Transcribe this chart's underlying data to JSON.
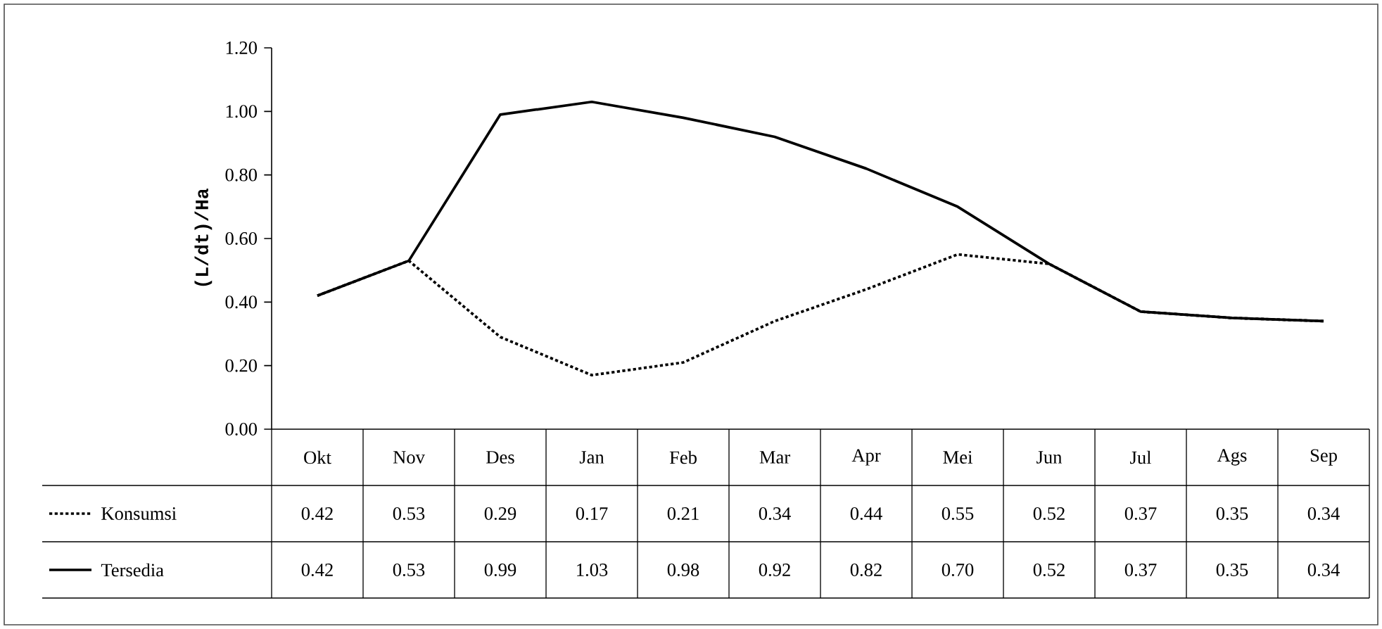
{
  "chart_data": {
    "type": "line",
    "ylabel": "(L/dt)/Ha",
    "categories": [
      "Okt",
      "Nov",
      "Des",
      "Jan",
      "Feb",
      "Mar",
      "Apr",
      "Mei",
      "Jun",
      "Jul",
      "Ags",
      "Sep"
    ],
    "series": [
      {
        "name": "Konsumsi",
        "color": "#000000",
        "line_style": "dotted",
        "values": [
          0.42,
          0.53,
          0.29,
          0.17,
          0.21,
          0.34,
          0.44,
          0.55,
          0.52,
          0.37,
          0.35,
          0.34
        ],
        "value_labels": [
          "0.42",
          "0.53",
          "0.29",
          "0.17",
          "0.21",
          "0.34",
          "0.44",
          "0.55",
          "0.52",
          "0.37",
          "0.35",
          "0.34"
        ]
      },
      {
        "name": "Tersedia",
        "color": "#000000",
        "line_style": "solid",
        "values": [
          0.42,
          0.53,
          0.99,
          1.03,
          0.98,
          0.92,
          0.82,
          0.7,
          0.52,
          0.37,
          0.35,
          0.34
        ],
        "value_labels": [
          "0.42",
          "0.53",
          "0.99",
          "1.03",
          "0.98",
          "0.92",
          "0.82",
          "0.70",
          "0.52",
          "0.37",
          "0.35",
          "0.34"
        ]
      }
    ],
    "ylim": [
      0,
      1.2
    ],
    "yticks": [
      {
        "value": 0,
        "label": "0.00"
      },
      {
        "value": 0.2,
        "label": "0.20"
      },
      {
        "value": 0.4,
        "label": "0.40"
      },
      {
        "value": 0.6,
        "label": "0.60"
      },
      {
        "value": 0.8,
        "label": "0.80"
      },
      {
        "value": 1.0,
        "label": "1.00"
      },
      {
        "value": 1.2,
        "label": "1.20"
      }
    ],
    "grid": false,
    "legend": "bottom left",
    "marker": "none"
  }
}
